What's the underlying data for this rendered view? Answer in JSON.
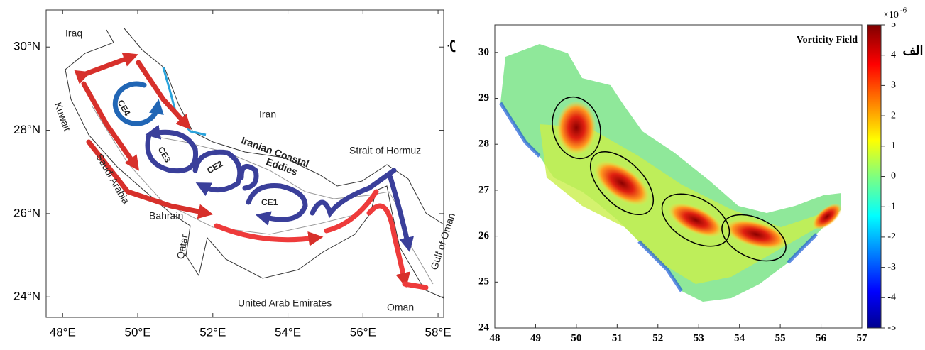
{
  "left_map": {
    "xlim": [
      47.56,
      58.15
    ],
    "ylim": [
      23.51,
      30.89
    ],
    "xticks": [
      {
        "value": 48,
        "label": "48°E"
      },
      {
        "value": 50,
        "label": "50°E"
      },
      {
        "value": 52,
        "label": "52°E"
      },
      {
        "value": 54,
        "label": "54°E"
      },
      {
        "value": 56,
        "label": "56°E"
      },
      {
        "value": 58,
        "label": "58°E"
      }
    ],
    "yticks": [
      {
        "value": 24,
        "label": "24°N"
      },
      {
        "value": 26,
        "label": "26°N"
      },
      {
        "value": 28,
        "label": "28°N"
      },
      {
        "value": 30,
        "label": "30°N"
      }
    ],
    "labels": [
      "Iraq",
      "Kuwait",
      "Iran",
      "Saudi Arabia",
      "Bahrain",
      "Qatar",
      "United Arab Emirates",
      "Oman",
      "Gulf of Oman",
      "Strait of Hormuz",
      "Iranian Coastal",
      "Eddies",
      "CE1",
      "CE2",
      "CE3",
      "CE4"
    ],
    "panel_label": "ب"
  },
  "right_map": {
    "title": "Vorticity Field",
    "panel_label": "الف",
    "xlim": [
      48,
      57
    ],
    "ylim": [
      24,
      30.6
    ],
    "xticks": [
      48,
      49,
      50,
      51,
      52,
      53,
      54,
      55,
      56,
      57
    ],
    "yticks": [
      24,
      25,
      26,
      27,
      28,
      29,
      30
    ],
    "colorbar": {
      "lim": [
        -5,
        5
      ],
      "ticks": [
        -5,
        -4,
        -3,
        -2,
        -1,
        0,
        1,
        2,
        3,
        4,
        5
      ],
      "multiplier": "×10",
      "exponent": "-6"
    }
  }
}
